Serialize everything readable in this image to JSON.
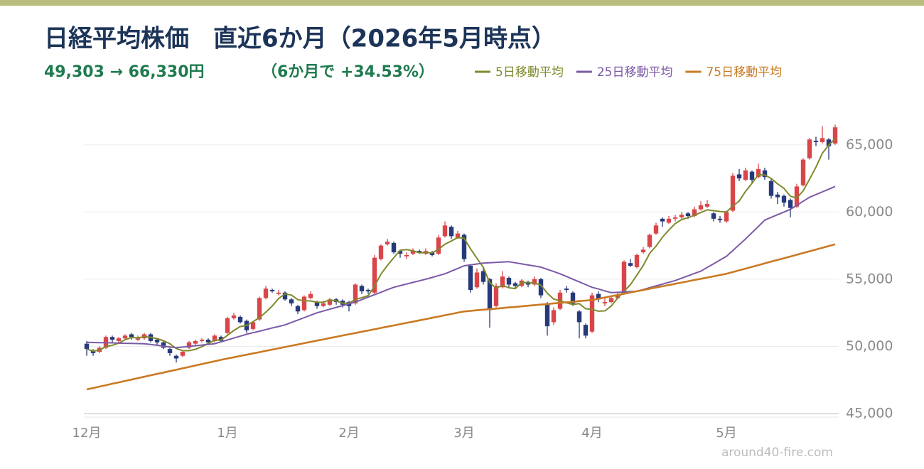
{
  "chart_data": {
    "type": "candlestick",
    "title": "日経平均株価　直近6か月（2026年5月時点）",
    "subtitle": "49,303 → 66,330円",
    "change": "（6か月で +34.53%）",
    "watermark": "around40-fire.com",
    "up_color": "#d9464a",
    "down_color": "#26397a",
    "grid": true,
    "ylim": [
      45000,
      67000
    ],
    "yticks": [
      {
        "value": 45000,
        "label": "45,000"
      },
      {
        "value": 50000,
        "label": "50,000"
      },
      {
        "value": 55000,
        "label": "55,000"
      },
      {
        "value": 60000,
        "label": "60,000"
      },
      {
        "value": 65000,
        "label": "65,000"
      }
    ],
    "categories": [
      "12月",
      null,
      null,
      null,
      null,
      null,
      null,
      null,
      null,
      null,
      null,
      null,
      null,
      null,
      null,
      null,
      null,
      null,
      null,
      null,
      null,
      null,
      "1月",
      null,
      null,
      null,
      null,
      null,
      null,
      null,
      null,
      null,
      null,
      null,
      null,
      null,
      null,
      null,
      null,
      null,
      null,
      "2月",
      null,
      null,
      null,
      null,
      null,
      null,
      null,
      null,
      null,
      null,
      null,
      null,
      null,
      null,
      null,
      null,
      null,
      "3月",
      null,
      null,
      null,
      null,
      null,
      null,
      null,
      null,
      null,
      null,
      null,
      null,
      null,
      null,
      null,
      null,
      null,
      null,
      null,
      "4月",
      null,
      null,
      null,
      null,
      null,
      null,
      null,
      null,
      null,
      null,
      null,
      null,
      null,
      null,
      null,
      null,
      null,
      null,
      null,
      null,
      "5月",
      null,
      null,
      null,
      null,
      null,
      null,
      null,
      null,
      null,
      null,
      null,
      null,
      null,
      null,
      null,
      null,
      null
    ],
    "open": [
      50200,
      49700,
      49600,
      49900,
      50700,
      50400,
      50600,
      50900,
      50500,
      50600,
      50900,
      50500,
      50300,
      49800,
      49300,
      49300,
      49900,
      50200,
      50400,
      50500,
      50400,
      50700,
      51000,
      52100,
      52200,
      51900,
      51300,
      52000,
      53600,
      54200,
      53900,
      54000,
      53500,
      53000,
      52700,
      53600,
      53300,
      53000,
      53100,
      53500,
      53400,
      53300,
      53200,
      54500,
      54200,
      54000,
      56500,
      57600,
      57700,
      57100,
      56700,
      56900,
      57100,
      56900,
      57000,
      56900,
      58200,
      58900,
      58100,
      58300,
      56000,
      54400,
      55600,
      55000,
      53000,
      54400,
      55100,
      54700,
      54500,
      54800,
      54600,
      55000,
      53200,
      51800,
      52800,
      54300,
      54000,
      52600,
      51600,
      51100,
      53900,
      53200,
      53300,
      53600,
      54000,
      56200,
      55900,
      57000,
      57400,
      58400,
      59500,
      59200,
      59500,
      59600,
      59900,
      59700,
      60200,
      60400,
      59900,
      59500,
      59300,
      60100,
      62800,
      62400,
      63000,
      62600,
      63100,
      62300,
      61300,
      61200,
      60900,
      60400,
      62000,
      64000,
      65300,
      65200,
      65400,
      65100
    ],
    "high": [
      50400,
      49800,
      50000,
      50800,
      50800,
      50700,
      50900,
      51000,
      50800,
      51000,
      51000,
      50600,
      50400,
      49900,
      49400,
      49700,
      50400,
      50500,
      50600,
      50600,
      50900,
      50800,
      52200,
      52500,
      52300,
      52000,
      51900,
      53700,
      54500,
      54300,
      54200,
      54100,
      53600,
      53100,
      53800,
      54100,
      53400,
      53400,
      53600,
      53600,
      53500,
      53400,
      54700,
      54600,
      54300,
      56800,
      57600,
      58000,
      57800,
      57200,
      57000,
      57300,
      57200,
      57300,
      57100,
      58300,
      59300,
      59000,
      58600,
      58400,
      56100,
      55800,
      55900,
      55100,
      54700,
      55600,
      55200,
      54800,
      55000,
      54900,
      55200,
      55100,
      53300,
      52900,
      54200,
      54500,
      54100,
      52700,
      51700,
      54000,
      54100,
      53600,
      53800,
      54000,
      56400,
      56500,
      56900,
      57400,
      58400,
      59200,
      59600,
      59700,
      59800,
      60000,
      60000,
      60400,
      60800,
      60900,
      60000,
      59700,
      60100,
      62900,
      63200,
      63300,
      63100,
      63600,
      63300,
      62500,
      61500,
      61300,
      61000,
      62100,
      64000,
      65500,
      65600,
      66400,
      65500,
      66500
    ],
    "low": [
      49300,
      49300,
      49500,
      49800,
      50300,
      50300,
      50500,
      50500,
      50400,
      50500,
      50300,
      50100,
      49800,
      49300,
      48800,
      49200,
      49800,
      50100,
      50300,
      50200,
      50300,
      50300,
      50900,
      52000,
      51700,
      51000,
      51200,
      51900,
      53500,
      54000,
      53800,
      53400,
      53000,
      52400,
      52600,
      53500,
      52800,
      52900,
      53000,
      53100,
      52900,
      52600,
      53100,
      53900,
      53900,
      53900,
      56400,
      57500,
      56900,
      56600,
      56500,
      56800,
      56900,
      56800,
      56700,
      56800,
      58100,
      58000,
      58000,
      56300,
      54000,
      54300,
      54600,
      51400,
      52900,
      54300,
      54400,
      54300,
      54400,
      54400,
      54500,
      53600,
      50800,
      51600,
      52700,
      54000,
      53000,
      50600,
      50600,
      51000,
      53300,
      53000,
      53200,
      53500,
      53900,
      55900,
      55800,
      56900,
      57300,
      58300,
      58900,
      59100,
      59300,
      59500,
      59500,
      59600,
      60100,
      60300,
      59300,
      59200,
      59200,
      60000,
      62300,
      62300,
      62200,
      62500,
      62400,
      61000,
      60600,
      60400,
      59600,
      60300,
      61900,
      63900,
      64900,
      65100,
      63900,
      65000
    ],
    "close": [
      49800,
      49500,
      49900,
      50700,
      50500,
      50600,
      50800,
      50700,
      50600,
      50900,
      50400,
      50300,
      49900,
      49500,
      49100,
      49600,
      50300,
      50400,
      50500,
      50300,
      50800,
      50400,
      52100,
      52300,
      51800,
      51200,
      51800,
      53600,
      54300,
      54100,
      54000,
      53500,
      53200,
      52600,
      53700,
      53900,
      53000,
      53200,
      53500,
      53300,
      53100,
      53000,
      54600,
      54100,
      54100,
      56600,
      57500,
      57800,
      57000,
      56900,
      56800,
      57100,
      57000,
      57100,
      56800,
      58100,
      59000,
      58200,
      58400,
      56500,
      54200,
      55500,
      54800,
      52700,
      54500,
      55200,
      54600,
      54500,
      54900,
      54600,
      55000,
      53800,
      51500,
      52700,
      54000,
      54200,
      53200,
      51800,
      50800,
      53800,
      53500,
      53300,
      53600,
      53800,
      56300,
      56000,
      56800,
      57200,
      58300,
      59000,
      59300,
      59500,
      59600,
      59800,
      59700,
      60200,
      60500,
      60600,
      59500,
      59400,
      60000,
      62700,
      62500,
      63100,
      62400,
      63200,
      62600,
      61200,
      61100,
      60700,
      60300,
      61900,
      63900,
      65400,
      65200,
      65500,
      64900,
      66300
    ],
    "series": [
      {
        "name": "5日移動平均",
        "color": "#7f8a2c",
        "values": [
          49800,
          49650,
          49730,
          49980,
          50080,
          50240,
          50500,
          50660,
          50640,
          50720,
          50680,
          50580,
          50420,
          50200,
          49840,
          49680,
          49680,
          49780,
          49980,
          50220,
          50460,
          50480,
          50820,
          51180,
          51480,
          51560,
          51840,
          52140,
          52540,
          53000,
          53560,
          53900,
          53820,
          53480,
          53400,
          53380,
          53280,
          53280,
          53460,
          53380,
          53220,
          53220,
          53500,
          53620,
          53780,
          54480,
          55380,
          56020,
          56600,
          57160,
          57200,
          57120,
          56960,
          56980,
          56960,
          57220,
          57600,
          57840,
          58100,
          58040,
          57260,
          56560,
          55880,
          54740,
          54340,
          54540,
          54360,
          54300,
          54740,
          54760,
          54720,
          54560,
          53960,
          53520,
          53400,
          53240,
          53120,
          53180,
          52800,
          52760,
          52620,
          52640,
          53000,
          53600,
          54100,
          54600,
          55300,
          56020,
          56920,
          57460,
          58120,
          58660,
          59140,
          59440,
          59580,
          59760,
          59960,
          60160,
          60100,
          60040,
          60000,
          60440,
          60820,
          61540,
          62140,
          62780,
          62760,
          62500,
          62100,
          61760,
          61180,
          61040,
          61580,
          62440,
          63340,
          64380,
          64980,
          65460
        ]
      },
      {
        "name": "25日移動平均",
        "color": "#7b5aa6",
        "values": [
          50300,
          50290,
          50280,
          50270,
          50260,
          50240,
          50230,
          50220,
          50210,
          50200,
          50140,
          50080,
          50020,
          49960,
          49900,
          49950,
          50000,
          50050,
          50100,
          50150,
          50200,
          50340,
          50480,
          50620,
          50760,
          50900,
          51020,
          51130,
          51250,
          51370,
          51480,
          51600,
          51780,
          51960,
          52140,
          52320,
          52500,
          52630,
          52770,
          52900,
          53030,
          53170,
          53300,
          53480,
          53670,
          53850,
          54030,
          54220,
          54400,
          54520,
          54640,
          54760,
          54880,
          55000,
          55130,
          55270,
          55400,
          55600,
          55800,
          56000,
          56070,
          56130,
          56200,
          56230,
          56250,
          56280,
          56300,
          56220,
          56140,
          56060,
          55980,
          55900,
          55730,
          55570,
          55400,
          55200,
          55000,
          54800,
          54600,
          54400,
          54270,
          54130,
          54000,
          54020,
          54050,
          54080,
          54100,
          54230,
          54370,
          54500,
          54630,
          54770,
          54900,
          55080,
          55250,
          55430,
          55600,
          55880,
          56150,
          56430,
          56700,
          57130,
          57570,
          58000,
          58470,
          58930,
          59400,
          59600,
          59800,
          60000,
          60200,
          60500,
          60800,
          61100,
          61300,
          61500,
          61700,
          61900
        ]
      },
      {
        "name": "75日移動平均",
        "color": "#c97a24",
        "values": [
          46800,
          46900,
          47010,
          47110,
          47220,
          47320,
          47430,
          47530,
          47640,
          47740,
          47850,
          47950,
          48050,
          48160,
          48260,
          48370,
          48470,
          48580,
          48680,
          48790,
          48890,
          49000,
          49100,
          49190,
          49290,
          49380,
          49480,
          49570,
          49670,
          49760,
          49860,
          49950,
          50050,
          50140,
          50240,
          50330,
          50430,
          50520,
          50620,
          50710,
          50810,
          50900,
          50990,
          51090,
          51180,
          51280,
          51370,
          51470,
          51560,
          51660,
          51750,
          51840,
          51940,
          52030,
          52130,
          52220,
          52320,
          52410,
          52510,
          52600,
          52640,
          52690,
          52730,
          52770,
          52810,
          52860,
          52900,
          52940,
          52980,
          53030,
          53070,
          53110,
          53150,
          53200,
          53240,
          53280,
          53320,
          53370,
          53410,
          53450,
          53540,
          53640,
          53730,
          53820,
          53910,
          54010,
          54100,
          54190,
          54290,
          54380,
          54470,
          54560,
          54660,
          54750,
          54840,
          54940,
          55030,
          55120,
          55210,
          55310,
          55400,
          55530,
          55660,
          55790,
          55920,
          56050,
          56180,
          56310,
          56440,
          56560,
          56690,
          56820,
          56950,
          57080,
          57210,
          57340,
          57470,
          57600
        ]
      }
    ]
  }
}
